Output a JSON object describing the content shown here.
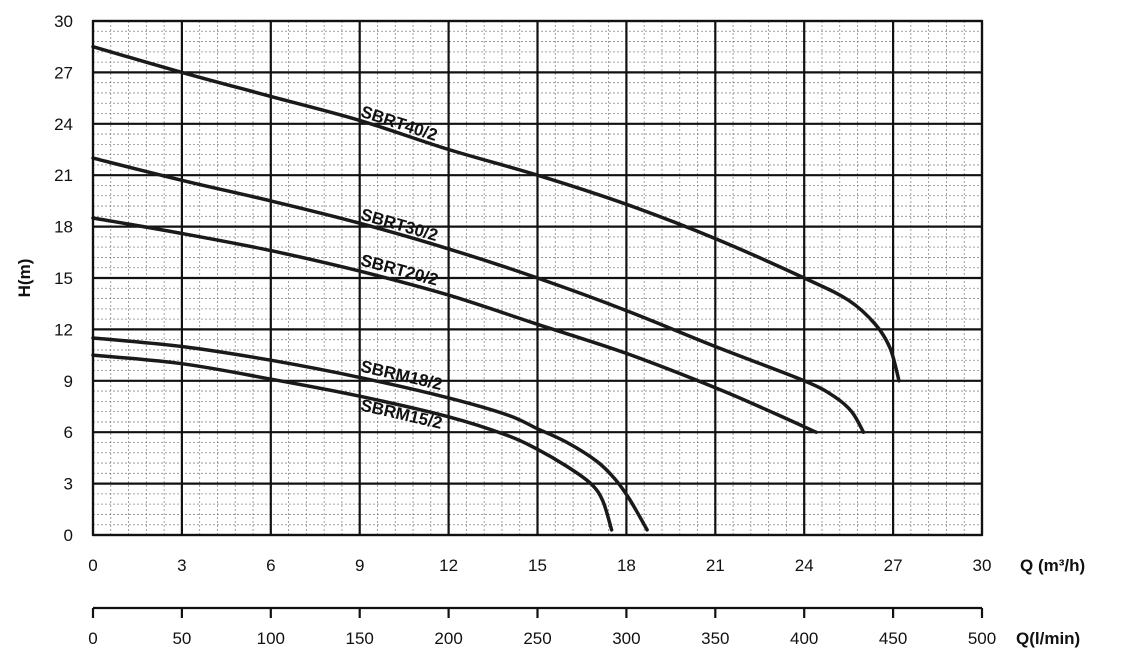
{
  "chart_data": {
    "type": "line",
    "xlabel": "Q (m³/h)",
    "ylabel": "H(m)",
    "secondary_xlabel": "Q(l/min)",
    "xlim": [
      0,
      30
    ],
    "ylim": [
      0,
      30
    ],
    "secondary_xlim": [
      0,
      500
    ],
    "x_ticks": [
      "0",
      "3",
      "6",
      "9",
      "12",
      "15",
      "18",
      "21",
      "24",
      "27",
      "30"
    ],
    "y_ticks": [
      "0",
      "3",
      "6",
      "9",
      "12",
      "15",
      "18",
      "21",
      "24",
      "27",
      "30"
    ],
    "secondary_x_ticks": [
      "0",
      "50",
      "100",
      "150",
      "200",
      "250",
      "300",
      "350",
      "400",
      "450",
      "500"
    ],
    "grid": true,
    "series": [
      {
        "name": "SBRT40/2",
        "points": [
          [
            0,
            28.5
          ],
          [
            3,
            27.0
          ],
          [
            6,
            25.6
          ],
          [
            9,
            24.2
          ],
          [
            12,
            22.5
          ],
          [
            15,
            21.0
          ],
          [
            18,
            19.3
          ],
          [
            21,
            17.3
          ],
          [
            24,
            15.0
          ],
          [
            25.5,
            13.7
          ],
          [
            26.4,
            12.3
          ],
          [
            26.9,
            10.9
          ],
          [
            27.2,
            9.0
          ]
        ]
      },
      {
        "name": "SBRT30/2",
        "points": [
          [
            0,
            22.0
          ],
          [
            3,
            20.7
          ],
          [
            6,
            19.5
          ],
          [
            9,
            18.2
          ],
          [
            12,
            16.7
          ],
          [
            15,
            15.0
          ],
          [
            18,
            13.1
          ],
          [
            21,
            11.0
          ],
          [
            24,
            9.0
          ],
          [
            25,
            8.1
          ],
          [
            25.6,
            7.2
          ],
          [
            26.0,
            6.0
          ]
        ]
      },
      {
        "name": "SBRT20/2",
        "points": [
          [
            0,
            18.5
          ],
          [
            3,
            17.6
          ],
          [
            6,
            16.6
          ],
          [
            9,
            15.4
          ],
          [
            12,
            14.0
          ],
          [
            15,
            12.3
          ],
          [
            18,
            10.6
          ],
          [
            21,
            8.6
          ],
          [
            23,
            7.1
          ],
          [
            24.4,
            6.0
          ]
        ]
      },
      {
        "name": "SBRM18/2",
        "points": [
          [
            0,
            11.5
          ],
          [
            3,
            11.0
          ],
          [
            6,
            10.2
          ],
          [
            9,
            9.2
          ],
          [
            12,
            8.0
          ],
          [
            14,
            7.0
          ],
          [
            15,
            6.2
          ],
          [
            16,
            5.4
          ],
          [
            17,
            4.3
          ],
          [
            17.6,
            3.3
          ],
          [
            18.1,
            2.1
          ],
          [
            18.7,
            0.3
          ]
        ]
      },
      {
        "name": "SBRM15/2",
        "points": [
          [
            0,
            10.5
          ],
          [
            3,
            10.0
          ],
          [
            6,
            9.1
          ],
          [
            9,
            8.1
          ],
          [
            12,
            6.9
          ],
          [
            14,
            5.8
          ],
          [
            15,
            5.0
          ],
          [
            16,
            4.0
          ],
          [
            16.8,
            3.0
          ],
          [
            17.2,
            2.0
          ],
          [
            17.5,
            0.3
          ]
        ]
      }
    ]
  }
}
